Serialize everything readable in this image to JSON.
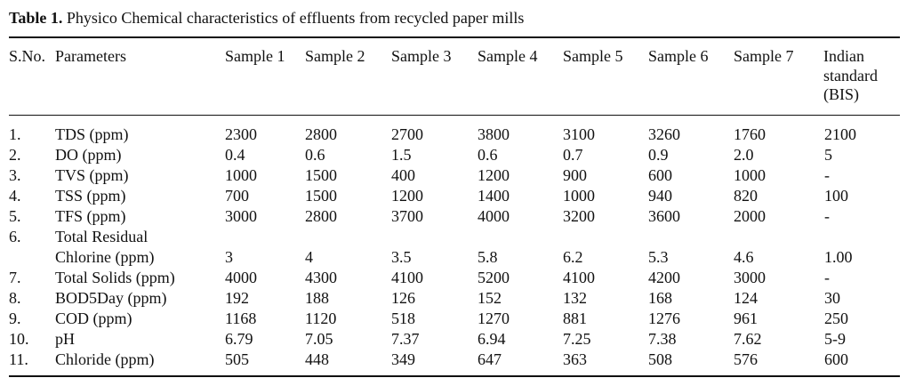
{
  "caption": {
    "label": "Table 1.",
    "text": "Physico Chemical characteristics of effluents from recycled paper mills"
  },
  "headers": {
    "sno": "S.No.",
    "parameters": "Parameters",
    "samples": [
      "Sample 1",
      "Sample 2",
      "Sample 3",
      "Sample 4",
      "Sample 5",
      "Sample 6",
      "Sample 7"
    ],
    "indian_standard": [
      "Indian",
      "standard",
      "(BIS)"
    ]
  },
  "rows": [
    {
      "sno": "1.",
      "param": "TDS (ppm)",
      "values": [
        "2300",
        "2800",
        "2700",
        "3800",
        "3100",
        "3260",
        "1760"
      ],
      "bis": "2100"
    },
    {
      "sno": "2.",
      "param": "DO (ppm)",
      "values": [
        "0.4",
        "0.6",
        "1.5",
        "0.6",
        "0.7",
        "0.9",
        "2.0"
      ],
      "bis": "5"
    },
    {
      "sno": "3.",
      "param": "TVS (ppm)",
      "values": [
        "1000",
        "1500",
        "400",
        "1200",
        "900",
        "600",
        "1000"
      ],
      "bis": "-"
    },
    {
      "sno": "4.",
      "param": "TSS (ppm)",
      "values": [
        "700",
        "1500",
        "1200",
        "1400",
        "1000",
        "940",
        "820"
      ],
      "bis": "100"
    },
    {
      "sno": "5.",
      "param": "TFS (ppm)",
      "values": [
        "3000",
        "2800",
        "3700",
        "4000",
        "3200",
        "3600",
        "2000"
      ],
      "bis": "-"
    },
    {
      "sno": "6.",
      "param_line1": "Total Residual",
      "param_line2": "Chlorine (ppm)",
      "values": [
        "3",
        "4",
        "3.5",
        "5.8",
        "6.2",
        "5.3",
        "4.6"
      ],
      "bis": "1.00"
    },
    {
      "sno": "7.",
      "param": "Total Solids (ppm)",
      "values": [
        "4000",
        "4300",
        "4100",
        "5200",
        "4100",
        "4200",
        "3000"
      ],
      "bis": "-"
    },
    {
      "sno": "8.",
      "param": "BOD5Day (ppm)",
      "values": [
        "192",
        "188",
        "126",
        "152",
        "132",
        "168",
        "124"
      ],
      "bis": "30"
    },
    {
      "sno": "9.",
      "param": "COD (ppm)",
      "values": [
        "1168",
        "1120",
        "518",
        "1270",
        "881",
        "1276",
        "961"
      ],
      "bis": "250"
    },
    {
      "sno": "10.",
      "param": "pH",
      "values": [
        "6.79",
        "7.05",
        "7.37",
        "6.94",
        "7.25",
        "7.38",
        "7.62"
      ],
      "bis": "5-9"
    },
    {
      "sno": "11.",
      "param": "Chloride (ppm)",
      "values": [
        "505",
        "448",
        "349",
        "647",
        "363",
        "508",
        "576"
      ],
      "bis": "600"
    }
  ]
}
